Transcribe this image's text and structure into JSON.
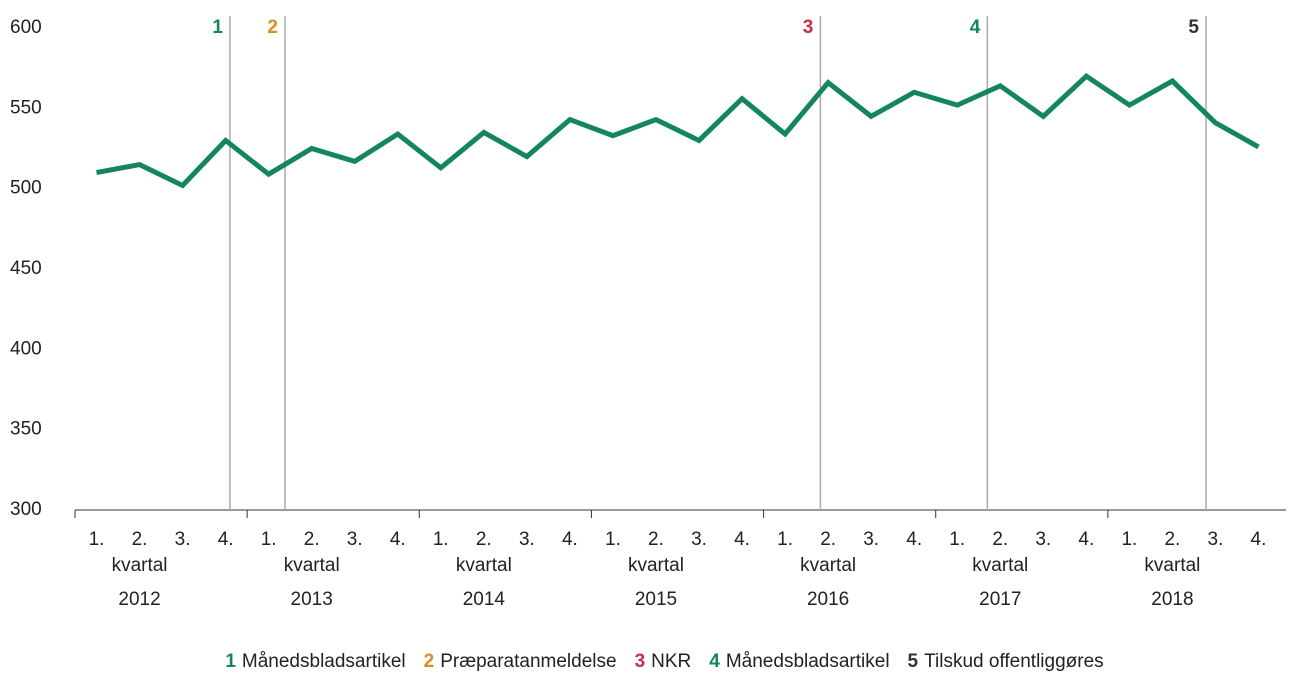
{
  "chart_data": {
    "type": "line",
    "categories": [
      "1.",
      "2.",
      "3.",
      "4.",
      "1.",
      "2.",
      "3.",
      "4.",
      "1.",
      "2.",
      "3.",
      "4.",
      "1.",
      "2.",
      "3.",
      "4.",
      "1.",
      "2.",
      "3.",
      "4.",
      "1.",
      "2.",
      "3.",
      "4.",
      "1.",
      "2.",
      "3.",
      "4."
    ],
    "groups": [
      "2012",
      "2013",
      "2014",
      "2015",
      "2016",
      "2017",
      "2018"
    ],
    "group_caption": "kvartal",
    "series": [
      {
        "name": null,
        "color": "#13855f",
        "values": [
          510,
          515,
          502,
          530,
          509,
          525,
          517,
          534,
          513,
          535,
          520,
          543,
          533,
          543,
          530,
          556,
          534,
          566,
          545,
          560,
          552,
          564,
          545,
          570,
          552,
          567,
          541,
          526
        ]
      }
    ],
    "xlim": [
      2012,
      2019
    ],
    "ylim": [
      300,
      600
    ],
    "yticks": [
      300,
      350,
      400,
      450,
      500,
      550,
      600
    ],
    "grid": false,
    "events": [
      {
        "number": 1,
        "label": "Månedsbladsartikel",
        "color": "#13855f",
        "x": 2012.9
      },
      {
        "number": 2,
        "label": "Præparatanmeldelse",
        "color": "#d38f28",
        "x": 2013.22
      },
      {
        "number": 3,
        "label": "NKR",
        "color": "#c62f4b",
        "x": 2016.33
      },
      {
        "number": 4,
        "label": "Månedsbladsartikel",
        "color": "#13855f",
        "x": 2017.3
      },
      {
        "number": 5,
        "label": "Tilskud offentliggøres",
        "color": "#333333",
        "x": 2018.57
      }
    ]
  }
}
